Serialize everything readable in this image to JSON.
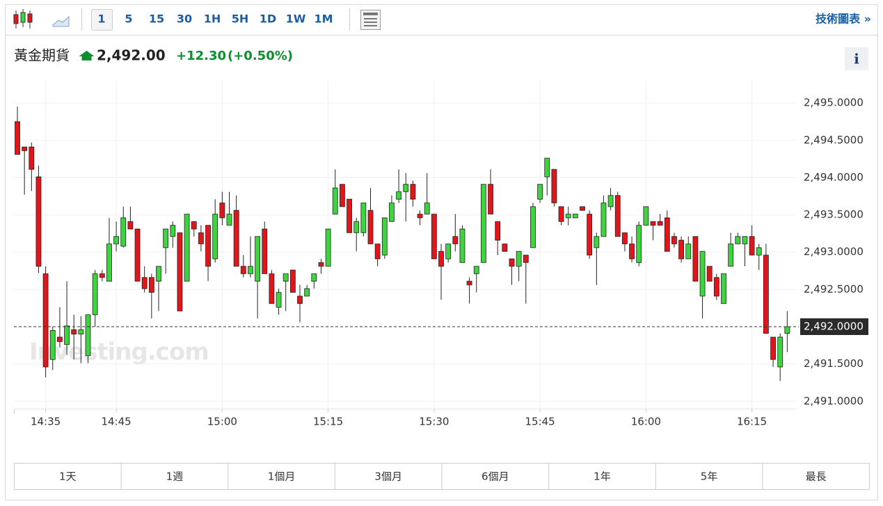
{
  "toolbar": {
    "intervals": [
      "1",
      "5",
      "15",
      "30",
      "1H",
      "5H",
      "1D",
      "1W",
      "1M"
    ],
    "link": "技術圖表 »"
  },
  "header": {
    "name": "黃金期貨",
    "price": "2,492.00",
    "change": "+12.30",
    "change_percent": "(+0.50%)",
    "info": "i"
  },
  "watermark": "Investing.com",
  "ranges": [
    "1天",
    "1週",
    "1個月",
    "3個月",
    "6個月",
    "1年",
    "5年",
    "最長"
  ],
  "chart_data": {
    "type": "candlestick",
    "up_color": "#3fd43f",
    "down_color": "#e0161b",
    "grid": true,
    "x": [
      "14:31",
      "14:32",
      "14:33",
      "14:34",
      "14:35",
      "14:36",
      "14:37",
      "14:38",
      "14:39",
      "14:40",
      "14:41",
      "14:42",
      "14:43",
      "14:44",
      "14:45",
      "14:46",
      "14:47",
      "14:48",
      "14:49",
      "14:50",
      "14:51",
      "14:52",
      "14:53",
      "14:54",
      "14:55",
      "14:56",
      "14:57",
      "14:58",
      "14:59",
      "15:00",
      "15:01",
      "15:02",
      "15:03",
      "15:04",
      "15:05",
      "15:06",
      "15:07",
      "15:08",
      "15:09",
      "15:10",
      "15:11",
      "15:12",
      "15:13",
      "15:14",
      "15:15",
      "15:16",
      "15:17",
      "15:18",
      "15:19",
      "15:20",
      "15:21",
      "15:22",
      "15:23",
      "15:24",
      "15:25",
      "15:26",
      "15:27",
      "15:28",
      "15:29",
      "15:30",
      "15:31",
      "15:32",
      "15:33",
      "15:34",
      "15:35",
      "15:36",
      "15:37",
      "15:38",
      "15:39",
      "15:40",
      "15:41",
      "15:42",
      "15:43",
      "15:44",
      "15:45",
      "15:46",
      "15:47",
      "15:48",
      "15:49",
      "15:50",
      "15:51",
      "15:52",
      "15:53",
      "15:54",
      "15:55",
      "15:56",
      "15:57",
      "15:58",
      "15:59",
      "16:00",
      "16:01",
      "16:02",
      "16:03",
      "16:04",
      "16:05",
      "16:06",
      "16:07",
      "16:08",
      "16:09",
      "16:10",
      "16:11",
      "16:12",
      "16:13",
      "16:14",
      "16:15",
      "16:16",
      "16:17",
      "16:18",
      "16:19",
      "16:20"
    ],
    "open": [
      2494.75,
      2494.41,
      2494.41,
      2494.01,
      2492.71,
      2491.56,
      2491.86,
      2491.76,
      2491.96,
      2491.9,
      2491.61,
      2492.16,
      2492.71,
      2492.61,
      2493.11,
      2493.08,
      2493.41,
      2493.31,
      2492.66,
      2492.66,
      2492.61,
      2493.06,
      2493.21,
      2493.26,
      2492.61,
      2493.41,
      2493.26,
      2493.36,
      2492.91,
      2493.66,
      2493.36,
      2493.56,
      2492.81,
      2492.71,
      2492.61,
      2493.31,
      2492.71,
      2492.26,
      2492.61,
      2492.76,
      2492.41,
      2492.41,
      2492.61,
      2492.86,
      2492.81,
      2493.51,
      2493.91,
      2493.71,
      2493.26,
      2493.26,
      2493.56,
      2493.11,
      2492.96,
      2493.41,
      2493.71,
      2493.81,
      2493.91,
      2493.51,
      2493.51,
      2493.51,
      2493.01,
      2492.91,
      2493.21,
      2492.86,
      2492.61,
      2492.71,
      2492.86,
      2493.91,
      2493.41,
      2493.11,
      2492.91,
      2492.81,
      2492.96,
      2493.06,
      2493.71,
      2494.01,
      2494.11,
      2493.61,
      2493.46,
      2493.46,
      2493.61,
      2493.51,
      2493.06,
      2493.21,
      2493.61,
      2493.76,
      2493.26,
      2493.11,
      2492.86,
      2493.36,
      2493.41,
      2493.41,
      2493.46,
      2493.21,
      2493.16,
      2492.91,
      2493.21,
      2492.41,
      2492.81,
      2492.66,
      2492.31,
      2492.81,
      2493.11,
      2493.11,
      2493.21,
      2492.96,
      2492.96,
      2491.86,
      2491.46,
      2491.91
    ],
    "high": [
      2494.95,
      2494.41,
      2494.47,
      2494.16,
      2492.81,
      2492.0,
      2492.26,
      2492.61,
      2492.16,
      2492.14,
      2492.16,
      2492.76,
      2492.76,
      2493.46,
      2493.41,
      2493.61,
      2493.61,
      2493.31,
      2492.81,
      2492.71,
      2492.81,
      2493.31,
      2493.41,
      2493.26,
      2493.51,
      2493.41,
      2493.36,
      2493.36,
      2493.71,
      2493.81,
      2493.81,
      2493.76,
      2492.96,
      2493.21,
      2493.21,
      2493.41,
      2492.76,
      2492.51,
      2492.71,
      2492.76,
      2492.56,
      2492.56,
      2492.71,
      2492.91,
      2493.31,
      2494.11,
      2493.91,
      2493.71,
      2493.46,
      2493.66,
      2493.86,
      2493.11,
      2493.46,
      2493.76,
      2494.11,
      2494.06,
      2493.96,
      2493.56,
      2494.06,
      2493.51,
      2493.11,
      2493.11,
      2493.51,
      2493.36,
      2492.66,
      2492.81,
      2493.91,
      2494.11,
      2493.41,
      2493.11,
      2492.91,
      2493.01,
      2492.96,
      2493.66,
      2493.91,
      2494.26,
      2494.11,
      2493.61,
      2493.61,
      2493.51,
      2493.61,
      2493.56,
      2493.26,
      2493.76,
      2493.86,
      2493.81,
      2493.26,
      2493.21,
      2493.41,
      2493.61,
      2493.41,
      2493.51,
      2493.56,
      2493.26,
      2493.21,
      2493.21,
      2493.21,
      2493.01,
      2492.81,
      2492.71,
      2492.71,
      2493.26,
      2493.26,
      2493.21,
      2493.36,
      2493.11,
      2493.11,
      2491.86,
      2491.91,
      2492.21
    ],
    "low": [
      2494.31,
      2493.77,
      2493.82,
      2492.72,
      2491.32,
      2491.42,
      2491.72,
      2491.62,
      2491.56,
      2491.51,
      2491.51,
      2492.0,
      2492.61,
      2492.61,
      2493.01,
      2493.06,
      2493.31,
      2492.61,
      2492.46,
      2492.11,
      2492.21,
      2492.71,
      2493.06,
      2492.21,
      2492.61,
      2493.21,
      2493.01,
      2492.61,
      2492.86,
      2493.36,
      2493.36,
      2492.81,
      2492.66,
      2492.66,
      2492.11,
      2492.71,
      2492.31,
      2492.16,
      2492.21,
      2492.46,
      2492.06,
      2492.41,
      2492.51,
      2492.71,
      2492.81,
      2493.51,
      2493.61,
      2493.26,
      2493.01,
      2493.21,
      2493.11,
      2492.81,
      2492.91,
      2493.41,
      2493.66,
      2493.41,
      2493.61,
      2493.36,
      2493.51,
      2492.91,
      2492.36,
      2492.86,
      2493.01,
      2492.86,
      2492.31,
      2492.46,
      2492.86,
      2493.51,
      2492.96,
      2493.01,
      2492.56,
      2492.61,
      2492.31,
      2493.06,
      2493.66,
      2493.76,
      2493.61,
      2493.36,
      2493.36,
      2493.46,
      2493.56,
      2492.91,
      2492.56,
      2493.21,
      2493.56,
      2493.21,
      2493.01,
      2492.86,
      2492.81,
      2493.36,
      2493.16,
      2493.36,
      2493.01,
      2493.06,
      2492.86,
      2492.91,
      2492.61,
      2492.11,
      2492.61,
      2492.36,
      2492.31,
      2492.81,
      2493.11,
      2492.81,
      2492.96,
      2492.76,
      2491.91,
      2491.46,
      2491.27,
      2491.66
    ],
    "close": [
      2494.31,
      2494.36,
      2494.11,
      2492.81,
      2491.46,
      2491.95,
      2491.8,
      2492.01,
      2491.9,
      2491.96,
      2492.16,
      2492.71,
      2492.66,
      2493.11,
      2493.21,
      2493.46,
      2493.31,
      2492.61,
      2492.51,
      2492.46,
      2492.81,
      2493.31,
      2493.36,
      2492.21,
      2493.51,
      2493.31,
      2493.11,
      2492.81,
      2493.51,
      2493.46,
      2493.51,
      2492.81,
      2492.71,
      2492.81,
      2493.21,
      2492.71,
      2492.31,
      2492.46,
      2492.71,
      2492.46,
      2492.31,
      2492.51,
      2492.71,
      2492.81,
      2493.31,
      2493.86,
      2493.61,
      2493.26,
      2493.41,
      2493.66,
      2493.11,
      2492.91,
      2493.46,
      2493.66,
      2493.81,
      2493.91,
      2493.71,
      2493.46,
      2493.66,
      2492.91,
      2492.81,
      2493.11,
      2493.11,
      2493.31,
      2492.56,
      2492.81,
      2493.91,
      2493.51,
      2493.16,
      2493.01,
      2492.81,
      2493.01,
      2492.86,
      2493.61,
      2493.91,
      2494.26,
      2493.66,
      2493.41,
      2493.51,
      2493.51,
      2493.56,
      2492.96,
      2493.21,
      2493.66,
      2493.76,
      2493.21,
      2493.11,
      2492.91,
      2493.36,
      2493.61,
      2493.36,
      2493.36,
      2493.01,
      2493.11,
      2492.91,
      2493.11,
      2492.61,
      2493.01,
      2492.61,
      2492.41,
      2492.71,
      2493.11,
      2493.21,
      2493.21,
      2492.96,
      2493.06,
      2491.91,
      2491.56,
      2491.86,
      2492.0
    ],
    "xticks": [
      "14:35",
      "14:45",
      "15:00",
      "15:15",
      "15:30",
      "15:45",
      "16:00",
      "16:15"
    ],
    "ylim": [
      2490.9,
      2495.3
    ],
    "yticks": [
      {
        "value": 2491,
        "label": "2,491.0000"
      },
      {
        "value": 2491.5,
        "label": "2,491.5000"
      },
      {
        "value": 2492,
        "label": "2,492.0000"
      },
      {
        "value": 2492.5,
        "label": "2,492.5000"
      },
      {
        "value": 2493,
        "label": "2,493.0000"
      },
      {
        "value": 2493.5,
        "label": "2,493.5000"
      },
      {
        "value": 2494,
        "label": "2,494.0000"
      },
      {
        "value": 2494.5,
        "label": "2,494.5000"
      },
      {
        "value": 2495,
        "label": "2,495.0000"
      }
    ],
    "last_price": {
      "value": 2492,
      "label": "2,492.0000"
    }
  }
}
